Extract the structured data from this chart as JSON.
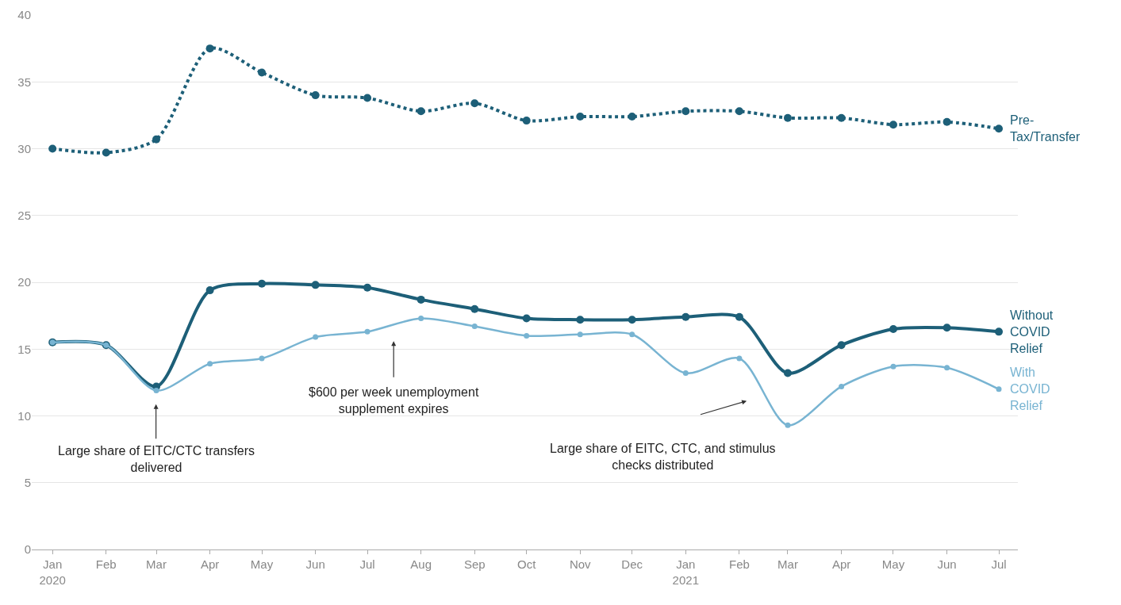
{
  "chart_data": {
    "type": "line",
    "x": [
      "2020-01",
      "2020-02",
      "2020-03",
      "2020-04",
      "2020-05",
      "2020-06",
      "2020-07",
      "2020-08",
      "2020-09",
      "2020-10",
      "2020-11",
      "2020-12",
      "2021-01",
      "2021-02",
      "2021-03",
      "2021-04",
      "2021-05",
      "2021-06",
      "2021-07"
    ],
    "series": [
      {
        "name": "Pre-\nTax/Transfer",
        "color": "#1d5f78",
        "line_style": "dotted",
        "values": [
          30.0,
          29.7,
          30.7,
          37.5,
          35.7,
          34.0,
          33.8,
          32.8,
          33.4,
          32.1,
          32.4,
          32.4,
          32.8,
          32.8,
          32.3,
          32.3,
          31.8,
          32.0,
          31.5
        ]
      },
      {
        "name": "Without\nCOVID\nRelief",
        "color": "#1d5f78",
        "line_style": "solid",
        "values": [
          15.5,
          15.3,
          12.2,
          19.4,
          19.9,
          19.8,
          19.6,
          18.7,
          18.0,
          17.3,
          17.2,
          17.2,
          17.4,
          17.4,
          13.2,
          15.3,
          16.5,
          16.6,
          16.3
        ]
      },
      {
        "name": "With\nCOVID\nRelief",
        "color": "#78b4d2",
        "line_style": "solid",
        "values": [
          15.5,
          15.3,
          11.9,
          13.9,
          14.3,
          15.9,
          16.3,
          17.3,
          16.7,
          16.0,
          16.1,
          16.1,
          13.2,
          14.3,
          9.3,
          12.2,
          13.7,
          13.6,
          12.0
        ]
      }
    ],
    "ylim": [
      0,
      40
    ],
    "yticks": [
      0,
      5,
      10,
      15,
      20,
      25,
      30,
      35,
      40
    ],
    "xlim": [
      "2019-12-20",
      "2021-07-12"
    ],
    "xticks": [
      {
        "value": "2020-01",
        "label": "Jan\n2020"
      },
      {
        "value": "2020-02",
        "label": "Feb"
      },
      {
        "value": "2020-03",
        "label": "Mar"
      },
      {
        "value": "2020-04",
        "label": "Apr"
      },
      {
        "value": "2020-05",
        "label": "May"
      },
      {
        "value": "2020-06",
        "label": "Jun"
      },
      {
        "value": "2020-07",
        "label": "Jul"
      },
      {
        "value": "2020-08",
        "label": "Aug"
      },
      {
        "value": "2020-09",
        "label": "Sep"
      },
      {
        "value": "2020-10",
        "label": "Oct"
      },
      {
        "value": "2020-11",
        "label": "Nov"
      },
      {
        "value": "2020-12",
        "label": "Dec"
      },
      {
        "value": "2021-01",
        "label": "Jan\n2021"
      },
      {
        "value": "2021-02",
        "label": "Feb"
      },
      {
        "value": "2021-03",
        "label": "Mar"
      },
      {
        "value": "2021-04",
        "label": "Apr"
      },
      {
        "value": "2021-05",
        "label": "May"
      },
      {
        "value": "2021-06",
        "label": "Jun"
      },
      {
        "value": "2021-07",
        "label": "Jul"
      }
    ],
    "annotations": [
      "Large share of EITC/CTC transfers\ndelivered",
      "$600 per week unemployment\nsupplement expires",
      "Large share of EITC, CTC, and stimulus\nchecks distributed"
    ],
    "grid": "y",
    "legend": false,
    "marker": "circle"
  }
}
